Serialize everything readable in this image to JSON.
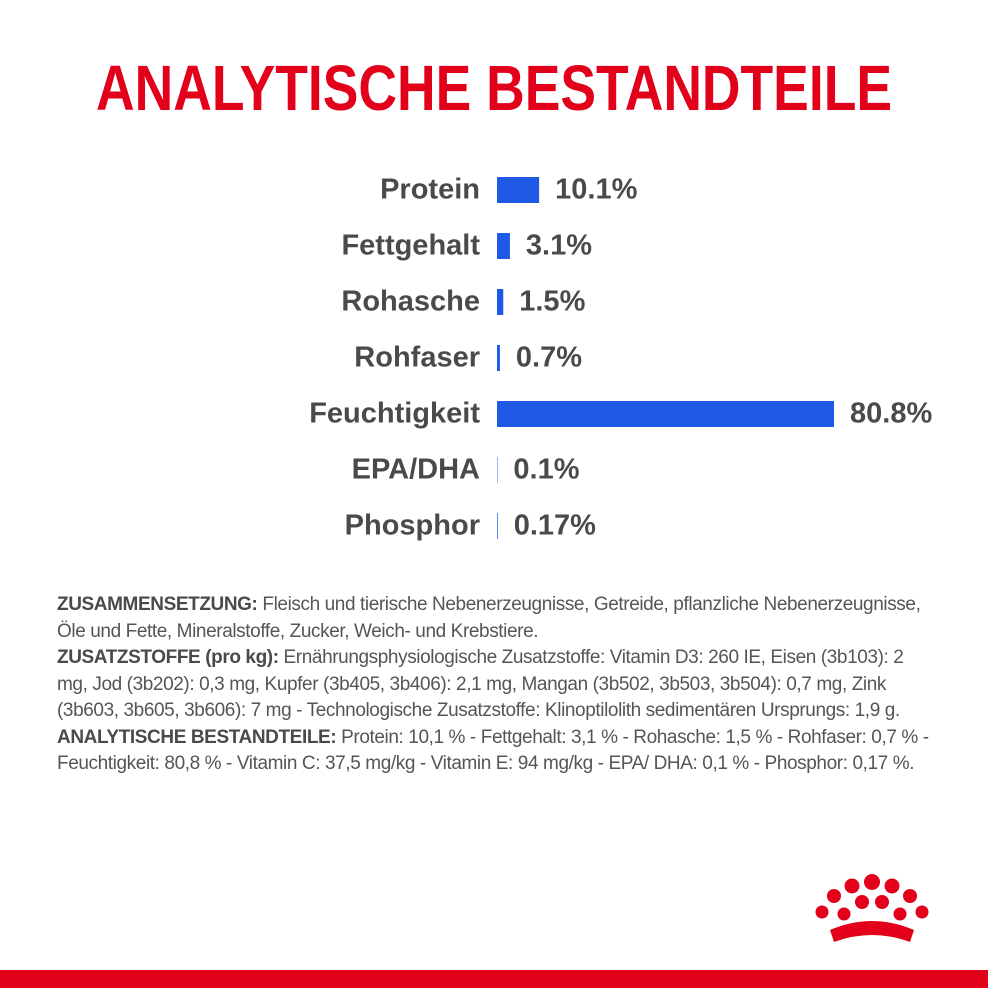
{
  "chart_data": {
    "type": "bar",
    "orientation": "horizontal",
    "title": "ANALYTISCHE BESTANDTEILE",
    "categories": [
      "Protein",
      "Fettgehalt",
      "Rohasche",
      "Rohfaser",
      "Feuchtigkeit",
      "EPA/DHA",
      "Phosphor"
    ],
    "values": [
      10.1,
      3.1,
      1.5,
      0.7,
      80.8,
      0.1,
      0.17
    ],
    "value_labels": [
      "10.1%",
      "3.1%",
      "1.5%",
      "0.7%",
      "80.8%",
      "0.1%",
      "0.17%"
    ],
    "color": "#1f5ae6"
  },
  "document": {
    "paragraphs": [
      {
        "label": "ZUSAMMENSETZUNG:",
        "text": "Fleisch und tierische Nebenerzeugnisse, Getreide, pflanzliche Nebenerzeugnisse, Öle und Fette, Mineralstoffe, Zucker, Weich- und Krebstiere."
      },
      {
        "label": "ZUSATZSTOFFE (pro kg):",
        "text": "Ernährungsphysiologische Zusatzstoffe: Vitamin D3: 260 IE, Eisen (3b103): 2 mg, Jod (3b202): 0,3 mg, Kupfer (3b405, 3b406): 2,1 mg, Mangan (3b502, 3b503, 3b504): 0,7 mg, Zink (3b603, 3b605, 3b606): 7 mg - Technologische Zusatzstoffe: Klinoptilolith sedimentären Ursprungs: 1,9 g."
      },
      {
        "label": "ANALYTISCHE BESTANDTEILE:",
        "text": "Protein: 10,1 % - Fettgehalt: 3,1 % - Rohasche: 1,5 % - Rohfaser: 0,7 % - Feuchtigkeit: 80,8 % - Vitamin C: 37,5 mg/kg - Vitamin E: 94 mg/kg - EPA/ DHA: 0,1 % - Phosphor: 0,17 %."
      }
    ]
  }
}
